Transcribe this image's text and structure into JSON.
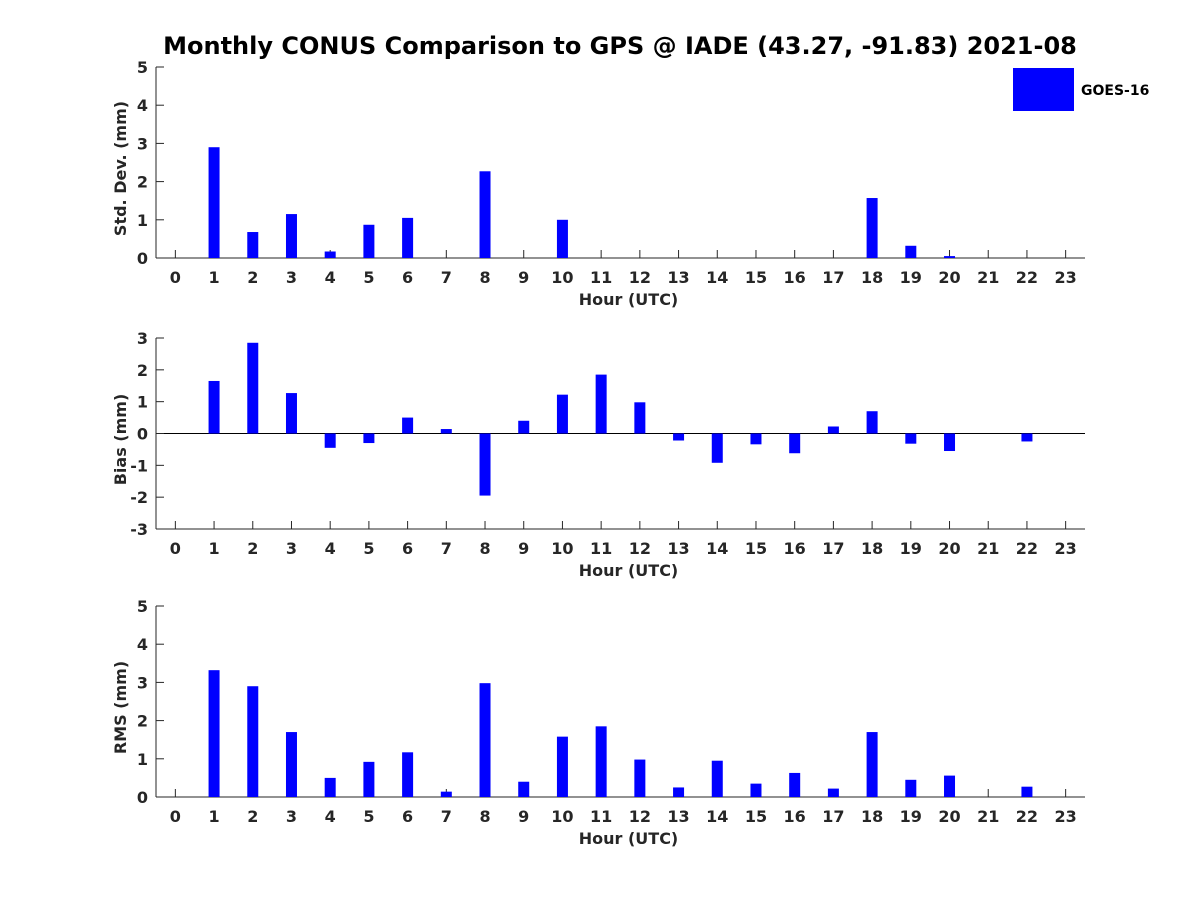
{
  "title": "Monthly CONUS Comparison to GPS @ IADE (43.27, -91.83) 2021-08",
  "legend": {
    "label": "GOES-16",
    "color": "#0000ff",
    "placement": "top-right"
  },
  "chart_data": [
    {
      "type": "bar",
      "x": [
        0,
        1,
        2,
        3,
        4,
        5,
        6,
        7,
        8,
        9,
        10,
        11,
        12,
        13,
        14,
        15,
        16,
        17,
        18,
        19,
        20,
        21,
        22,
        23
      ],
      "series": [
        {
          "name": "GOES-16",
          "values": [
            0,
            2.9,
            0.68,
            1.15,
            0.17,
            0.87,
            1.05,
            0,
            2.27,
            0,
            1.0,
            0,
            0,
            0,
            0,
            0,
            0,
            0,
            1.57,
            0.32,
            0.05,
            0,
            0,
            0
          ]
        }
      ],
      "xlabel": "Hour (UTC)",
      "ylabel": "Std. Dev. (mm)",
      "xlim": [
        -0.5,
        23.5
      ],
      "ylim": [
        0,
        5
      ],
      "yticks": [
        0,
        1,
        2,
        3,
        4,
        5
      ],
      "grid": false
    },
    {
      "type": "bar",
      "x": [
        0,
        1,
        2,
        3,
        4,
        5,
        6,
        7,
        8,
        9,
        10,
        11,
        12,
        13,
        14,
        15,
        16,
        17,
        18,
        19,
        20,
        21,
        22,
        23
      ],
      "series": [
        {
          "name": "GOES-16",
          "values": [
            0,
            1.65,
            2.85,
            1.27,
            -0.45,
            -0.3,
            0.5,
            0.14,
            -1.95,
            0.4,
            1.22,
            1.85,
            0.98,
            -0.22,
            -0.92,
            -0.34,
            -0.62,
            0.22,
            0.7,
            -0.32,
            -0.55,
            0,
            -0.25,
            0
          ]
        }
      ],
      "xlabel": "Hour (UTC)",
      "ylabel": "Bias (mm)",
      "xlim": [
        -0.5,
        23.5
      ],
      "ylim": [
        -3,
        3
      ],
      "yticks": [
        -3,
        -2,
        -1,
        0,
        1,
        2,
        3
      ],
      "grid": false
    },
    {
      "type": "bar",
      "x": [
        0,
        1,
        2,
        3,
        4,
        5,
        6,
        7,
        8,
        9,
        10,
        11,
        12,
        13,
        14,
        15,
        16,
        17,
        18,
        19,
        20,
        21,
        22,
        23
      ],
      "series": [
        {
          "name": "GOES-16",
          "values": [
            0,
            3.32,
            2.9,
            1.7,
            0.5,
            0.92,
            1.17,
            0.14,
            2.98,
            0.4,
            1.58,
            1.85,
            0.98,
            0.25,
            0.95,
            0.35,
            0.63,
            0.22,
            1.7,
            0.45,
            0.56,
            0,
            0.27,
            0
          ]
        }
      ],
      "xlabel": "Hour (UTC)",
      "ylabel": "RMS (mm)",
      "xlim": [
        -0.5,
        23.5
      ],
      "ylim": [
        0,
        5
      ],
      "yticks": [
        0,
        1,
        2,
        3,
        4,
        5
      ],
      "grid": false
    }
  ]
}
